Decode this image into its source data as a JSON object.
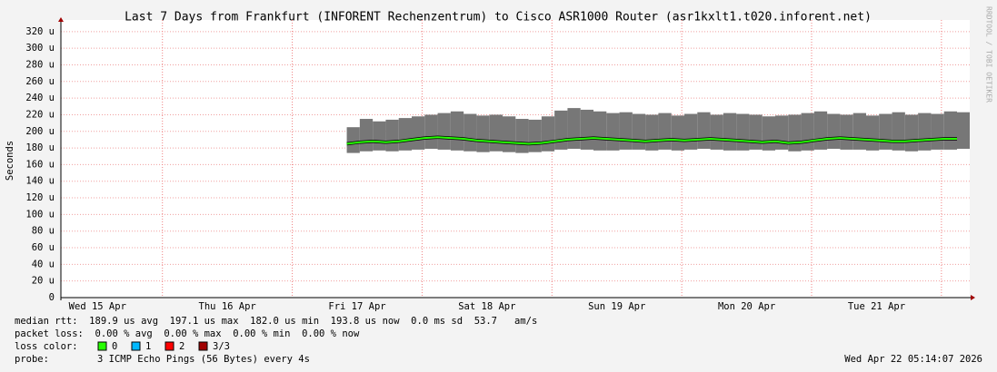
{
  "chart_data": {
    "type": "band",
    "title": "Last 7 Days from Frankfurt (INFORENT Rechenzentrum) to Cisco ASR1000 Router (asr1kxlt1.t020.inforent.net)",
    "y_label": "Seconds",
    "side_label": "RRDTOOL / TOBI OETIKER",
    "xlim": [
      15.218,
      22.218
    ],
    "xticks": [
      {
        "value": 15.5,
        "label": "Wed 15 Apr"
      },
      {
        "value": 16.5,
        "label": "Thu 16 Apr"
      },
      {
        "value": 17.5,
        "label": "Fri 17 Apr"
      },
      {
        "value": 18.5,
        "label": "Sat 18 Apr"
      },
      {
        "value": 19.5,
        "label": "Sun 19 Apr"
      },
      {
        "value": 20.5,
        "label": "Mon 20 Apr"
      },
      {
        "value": 21.5,
        "label": "Tue 21 Apr"
      }
    ],
    "xgrid": [
      16,
      17,
      18,
      19,
      20,
      21,
      22
    ],
    "ylim": [
      0,
      334
    ],
    "yticks": [
      0,
      {
        "value": 20,
        "label": "20 u"
      },
      {
        "value": 40,
        "label": "40 u"
      },
      {
        "value": 60,
        "label": "60 u"
      },
      {
        "value": 80,
        "label": "80 u"
      },
      {
        "value": 100,
        "label": "100 u"
      },
      {
        "value": 120,
        "label": "120 u"
      },
      {
        "value": 140,
        "label": "140 u"
      },
      {
        "value": 160,
        "label": "160 u"
      },
      {
        "value": 180,
        "label": "180 u"
      },
      {
        "value": 200,
        "label": "200 u"
      },
      {
        "value": 220,
        "label": "220 u"
      },
      {
        "value": 240,
        "label": "240 u"
      },
      {
        "value": 260,
        "label": "260 u"
      },
      {
        "value": 280,
        "label": "280 u"
      },
      {
        "value": 300,
        "label": "300 u"
      },
      {
        "value": 320,
        "label": "320 u"
      }
    ],
    "grid": true,
    "smoke_color": "#777777",
    "median_color": "#26ff00",
    "x": [
      17.42,
      17.52,
      17.62,
      17.72,
      17.82,
      17.92,
      18.02,
      18.12,
      18.22,
      18.32,
      18.42,
      18.52,
      18.62,
      18.72,
      18.82,
      18.92,
      19.02,
      19.12,
      19.22,
      19.32,
      19.42,
      19.52,
      19.62,
      19.72,
      19.82,
      19.92,
      20.02,
      20.12,
      20.22,
      20.32,
      20.42,
      20.52,
      20.62,
      20.72,
      20.82,
      20.92,
      21.02,
      21.12,
      21.22,
      21.32,
      21.42,
      21.52,
      21.62,
      21.72,
      21.82,
      21.92,
      22.02,
      22.12
    ],
    "median": [
      185,
      187,
      188,
      187,
      188,
      190,
      192,
      193,
      192,
      191,
      189,
      188,
      187,
      186,
      185,
      186,
      188,
      190,
      191,
      192,
      191,
      190,
      189,
      188,
      189,
      190,
      189,
      190,
      191,
      190,
      189,
      188,
      187,
      188,
      186,
      187,
      189,
      191,
      192,
      191,
      190,
      189,
      188,
      188,
      189,
      190,
      191,
      191
    ],
    "smoke_max": [
      205,
      215,
      212,
      214,
      216,
      218,
      220,
      222,
      224,
      221,
      219,
      220,
      218,
      215,
      214,
      218,
      225,
      228,
      226,
      224,
      222,
      223,
      221,
      220,
      222,
      219,
      221,
      223,
      220,
      222,
      221,
      220,
      218,
      219,
      220,
      222,
      224,
      221,
      220,
      222,
      219,
      221,
      223,
      220,
      222,
      221,
      224,
      223
    ],
    "smoke_min": [
      174,
      176,
      177,
      176,
      177,
      178,
      179,
      178,
      177,
      176,
      175,
      176,
      175,
      174,
      175,
      176,
      178,
      179,
      178,
      177,
      177,
      178,
      178,
      177,
      178,
      177,
      178,
      179,
      178,
      177,
      177,
      178,
      177,
      178,
      176,
      177,
      178,
      179,
      178,
      178,
      177,
      178,
      177,
      176,
      177,
      178,
      178,
      179
    ],
    "stats": [
      "median rtt:  189.9 us avg  197.1 us max  182.0 us min  193.8 us now  0.0 ms sd  53.7   am/s",
      "packet loss:  0.00 % avg  0.00 % max  0.00 % min  0.00 % now"
    ],
    "loss_label": "loss color:",
    "loss_items": [
      {
        "label": "0",
        "color": "#26ff00"
      },
      {
        "label": "1",
        "color": "#00b8ff"
      },
      {
        "label": "2",
        "color": "#ff0000"
      },
      {
        "label": "3/3",
        "color": "#a00000"
      }
    ],
    "probe_label": "probe:",
    "probe": "3 ICMP Echo Pings (56 Bytes) every 4s",
    "timestamp": "Wed Apr 22 05:14:07 2026"
  }
}
